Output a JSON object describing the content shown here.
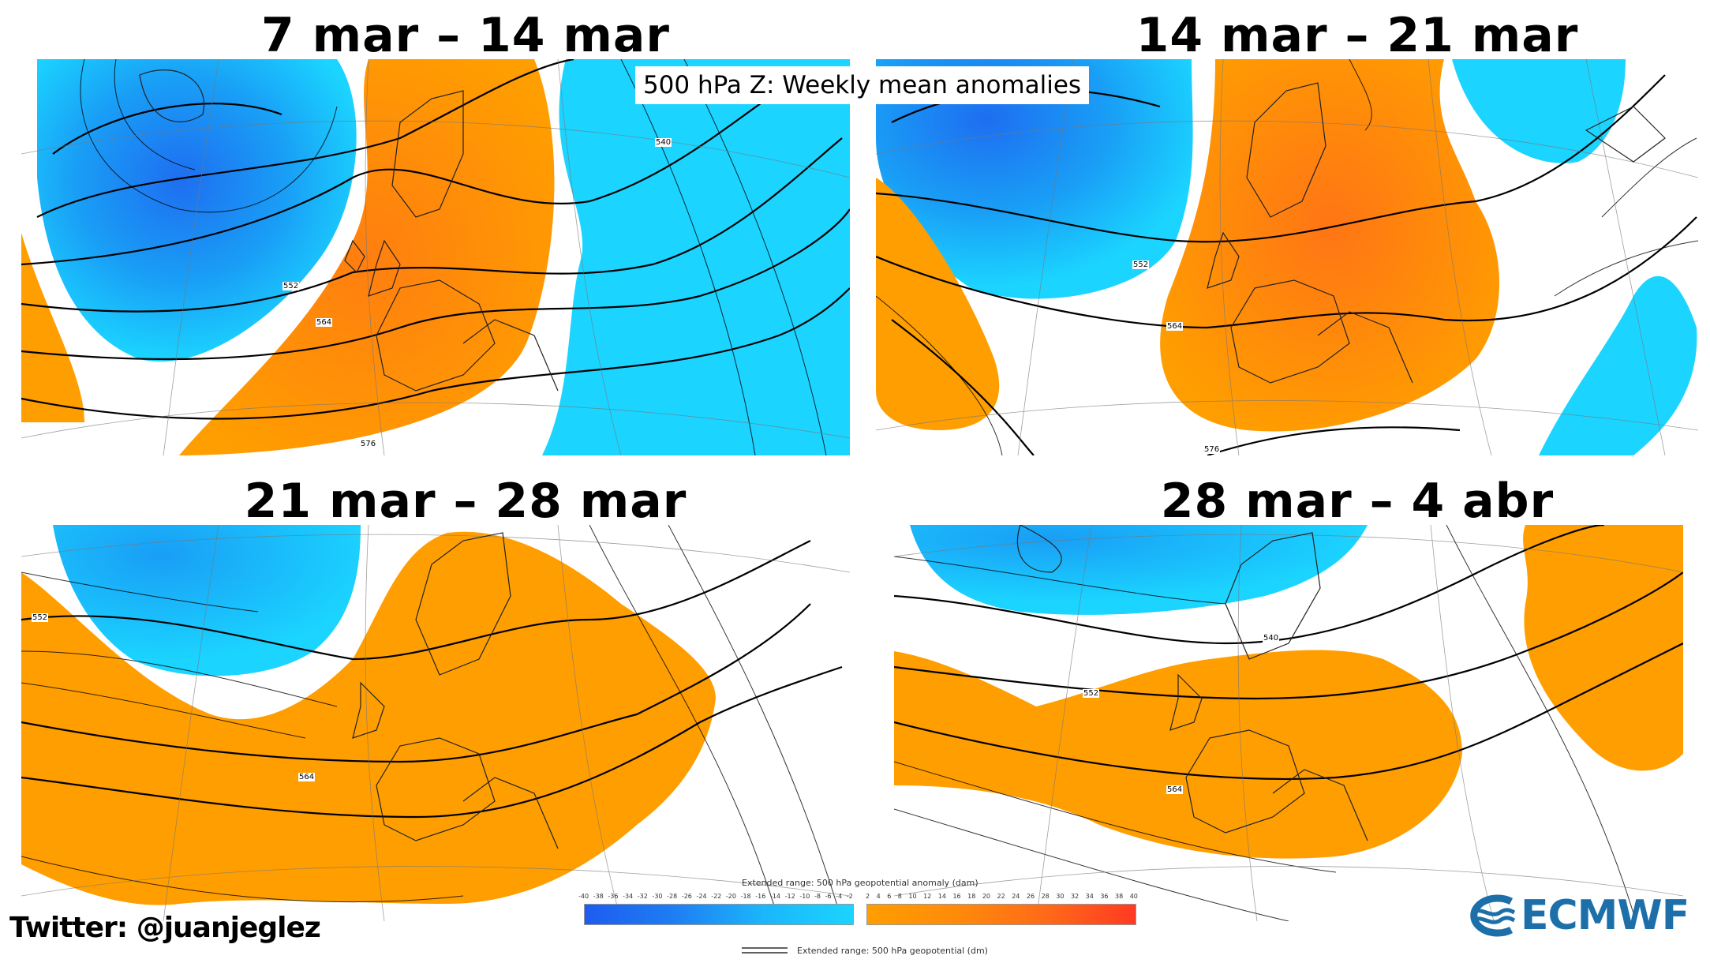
{
  "subtitle": "500 hPa Z: Weekly mean anomalies",
  "panels": [
    {
      "title": "7 mar – 14 mar"
    },
    {
      "title": "14 mar – 21 mar"
    },
    {
      "title": "21 mar – 28 mar"
    },
    {
      "title": "28 mar – 4 abr"
    }
  ],
  "contour_labels": [
    "540",
    "552",
    "564",
    "576"
  ],
  "legend": {
    "anomaly_caption": "Extended range: 500 hPa geopotential anomaly (dam)",
    "negative_ticks": [
      "-40",
      "-38",
      "-36",
      "-34",
      "-32",
      "-30",
      "-28",
      "-26",
      "-24",
      "-22",
      "-20",
      "-18",
      "-16",
      "-14",
      "-12",
      "-10",
      "-8",
      "-6",
      "-4",
      "-2"
    ],
    "positive_ticks": [
      "2",
      "4",
      "6",
      "8",
      "10",
      "12",
      "14",
      "16",
      "18",
      "20",
      "22",
      "24",
      "26",
      "28",
      "30",
      "32",
      "34",
      "36",
      "38",
      "40"
    ],
    "contour_caption": "Extended range: 500 hPa geopotential (dm)"
  },
  "credit": "Twitter: @juanjeglez",
  "logo_text": "ECMWF",
  "colors": {
    "negative_light": "#1bd4ff",
    "negative_dark": "#1e6ef0",
    "positive_light": "#ff9e00",
    "positive_dark": "#ff5a1a",
    "contour": "#000000"
  }
}
